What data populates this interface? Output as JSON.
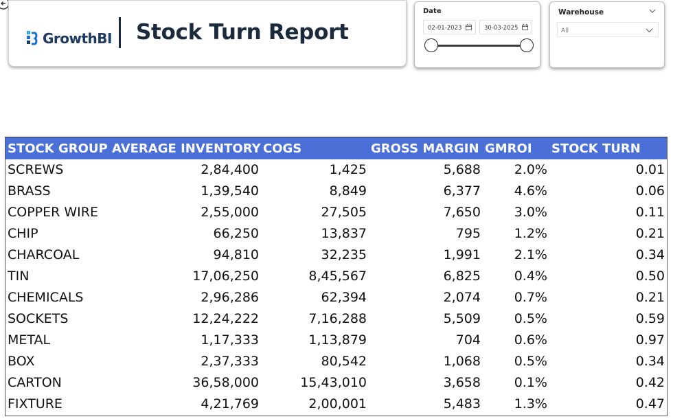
{
  "header": {
    "logo_text": "GrowthBI",
    "title": "Stock Turn Report",
    "brand_color": "#1f3a60"
  },
  "date_slicer": {
    "title": "Date",
    "start_date": "02-01-2023",
    "end_date": "30-03-2025",
    "range_fraction": [
      0,
      1
    ]
  },
  "warehouse_slicer": {
    "title": "Warehouse",
    "selected": "All"
  },
  "table": {
    "header_color": "#4a6fd7",
    "columns": [
      "STOCK GROUP",
      "AVERAGE INVENTORY",
      "COGS",
      "GROSS MARGIN",
      "GMROI",
      "STOCK TURN"
    ],
    "rows": [
      [
        "SCREWS",
        "2,84,400",
        "1,425",
        "5,688",
        "2.0%",
        "0.01"
      ],
      [
        "BRASS",
        "1,39,540",
        "8,849",
        "6,377",
        "4.6%",
        "0.06"
      ],
      [
        "COPPER WIRE",
        "2,55,000",
        "27,505",
        "7,650",
        "3.0%",
        "0.11"
      ],
      [
        "CHIP",
        "66,250",
        "13,837",
        "795",
        "1.2%",
        "0.21"
      ],
      [
        "CHARCOAL",
        "94,810",
        "32,235",
        "1,991",
        "2.1%",
        "0.34"
      ],
      [
        "TIN",
        "17,06,250",
        "8,45,567",
        "6,825",
        "0.4%",
        "0.50"
      ],
      [
        "CHEMICALS",
        "2,96,286",
        "62,394",
        "2,074",
        "0.7%",
        "0.21"
      ],
      [
        "SOCKETS",
        "12,24,222",
        "7,16,288",
        "5,509",
        "0.5%",
        "0.59"
      ],
      [
        "METAL",
        "1,17,333",
        "1,13,879",
        "704",
        "0.6%",
        "0.97"
      ],
      [
        "BOX",
        "2,37,333",
        "80,542",
        "1,068",
        "0.5%",
        "0.34"
      ],
      [
        "CARTON",
        "36,58,000",
        "15,43,010",
        "3,658",
        "0.1%",
        "0.42"
      ],
      [
        "FIXTURE",
        "4,21,769",
        "2,00,001",
        "5,483",
        "1.3%",
        "0.47"
      ]
    ]
  }
}
